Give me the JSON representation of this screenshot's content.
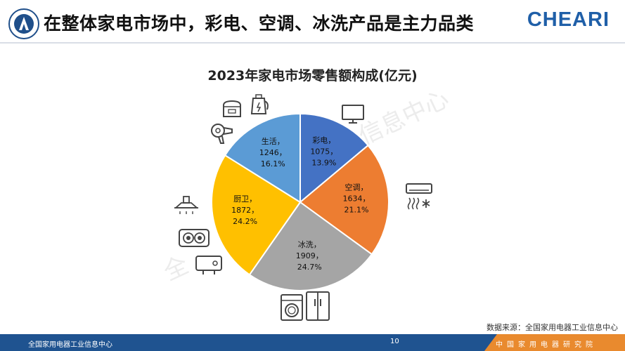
{
  "header": {
    "title": "在整体家电市场中，彩电、空调、冰洗产品是主力品类",
    "brand": "CHEARI"
  },
  "watermarks": {
    "right": "信息中心",
    "left": "全"
  },
  "chart_data": {
    "type": "pie",
    "title": "2023年家电市场零售额构成(亿元)",
    "unit": "亿元",
    "slices": [
      {
        "name": "彩电",
        "value": 1075,
        "pct": "13.9%",
        "color": "#4472c4",
        "label_value": "1075，",
        "label_name": "彩电，"
      },
      {
        "name": "空调",
        "value": 1634,
        "pct": "21.1%",
        "color": "#ed7d31",
        "label_value": "1634，",
        "label_name": "空调，"
      },
      {
        "name": "冰洗",
        "value": 1909,
        "pct": "24.7%",
        "color": "#a5a5a5",
        "label_value": "1909，",
        "label_name": "冰洗，"
      },
      {
        "name": "厨卫",
        "value": 1872,
        "pct": "24.2%",
        "color": "#ffc000",
        "label_value": "1872，",
        "label_name": "厨卫，"
      },
      {
        "name": "生活",
        "value": 1246,
        "pct": "16.1%",
        "color": "#5b9bd5",
        "label_value": "1246，",
        "label_name": "生活，"
      }
    ]
  },
  "source": "数据来源：全国家用电器工业信息中心",
  "footer": {
    "left": "全国家用电器工业信息中心",
    "page": "10",
    "right": "中国家用电器研究院"
  }
}
